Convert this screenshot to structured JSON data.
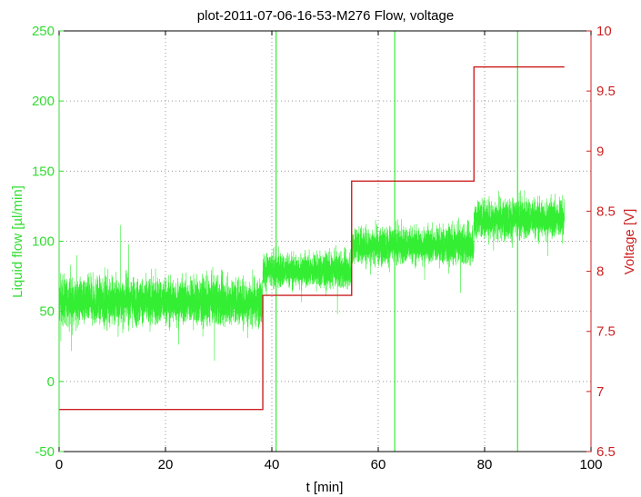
{
  "chart_data": {
    "type": "line",
    "title": "plot-2011-07-06-16-53-M276 Flow, voltage",
    "xlabel": "t [min]",
    "ylabel_left": "Liquid flow  [µl/min]",
    "ylabel_right": "Voltage [V]",
    "xlim": [
      0,
      100
    ],
    "ylim_left": [
      -50,
      250
    ],
    "ylim_right": [
      6.5,
      10
    ],
    "x_ticks": [
      0,
      20,
      40,
      60,
      80,
      100
    ],
    "y_left_ticks": [
      -50,
      0,
      50,
      100,
      150,
      200,
      250
    ],
    "y_right_ticks": [
      6.5,
      7,
      7.5,
      8,
      8.5,
      9,
      9.5,
      10
    ],
    "x_tick_labels": [
      "0",
      "20",
      "40",
      "60",
      "80",
      "100"
    ],
    "y_left_tick_labels": [
      "-50",
      "0",
      "50",
      "100",
      "150",
      "200",
      "250"
    ],
    "y_right_tick_labels": [
      "6.5",
      "7",
      "7.5",
      "8",
      "8.5",
      "9",
      "9.5",
      "10"
    ],
    "grid": true,
    "colors": {
      "flow": "#33ee33",
      "voltage": "#cc2222",
      "left_axis": "#33dd33",
      "right_axis": "#cc2222",
      "grid": "#999999"
    },
    "series": [
      {
        "axis": "left",
        "segments": [
          {
            "x_start": 0,
            "x_end": 38.3,
            "mean": 57,
            "spread": 15
          },
          {
            "x_start": 38.3,
            "x_end": 55,
            "mean": 79,
            "spread": 11
          },
          {
            "x_start": 55,
            "x_end": 78,
            "mean": 97,
            "spread": 12
          },
          {
            "x_start": 78,
            "x_end": 95,
            "mean": 116,
            "spread": 13
          }
        ],
        "spikes": [
          {
            "x": 40.8,
            "y_min": -50,
            "y_max": 250
          },
          {
            "x": 63.1,
            "y_min": -50,
            "y_max": 250
          },
          {
            "x": 86.2,
            "y_min": -50,
            "y_max": 250
          }
        ]
      },
      {
        "axis": "right",
        "steps": [
          {
            "x_start": 0,
            "x_end": 38.3,
            "y": 6.85
          },
          {
            "x_start": 38.3,
            "x_end": 55,
            "y": 7.8
          },
          {
            "x_start": 55,
            "x_end": 78,
            "y": 8.75
          },
          {
            "x_start": 78,
            "x_end": 95,
            "y": 9.7
          }
        ]
      }
    ]
  }
}
